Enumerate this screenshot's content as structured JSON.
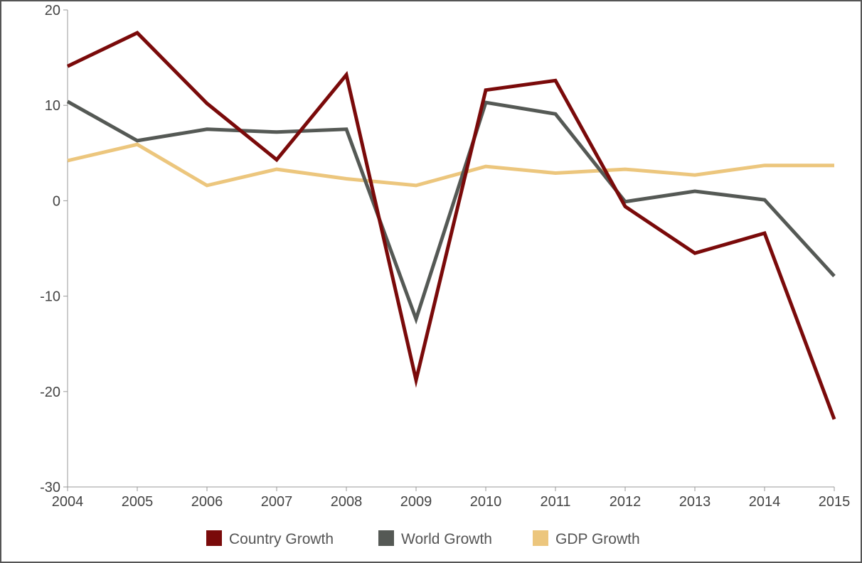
{
  "chart_data": {
    "type": "line",
    "title": "",
    "xlabel": "",
    "ylabel": "",
    "categories": [
      "2004",
      "2005",
      "2006",
      "2007",
      "2008",
      "2009",
      "2010",
      "2011",
      "2012",
      "2013",
      "2014",
      "2015"
    ],
    "y_ticks": [
      20,
      10,
      0,
      -10,
      -20,
      -30
    ],
    "ylim": [
      -30,
      20
    ],
    "grid": false,
    "legend_position": "bottom",
    "series": [
      {
        "name": "Country Growth",
        "color": "#7a0a0a",
        "values": [
          14.1,
          17.6,
          10.2,
          4.3,
          13.2,
          -18.8,
          11.6,
          12.6,
          -0.6,
          -5.5,
          -3.4,
          -22.9
        ]
      },
      {
        "name": "World Growth",
        "color": "#555955",
        "values": [
          10.4,
          6.3,
          7.5,
          7.2,
          7.5,
          -12.4,
          10.3,
          9.1,
          -0.1,
          1.0,
          0.1,
          -7.9
        ]
      },
      {
        "name": "GDP Growth",
        "color": "#ecc67d",
        "values": [
          4.2,
          5.9,
          1.6,
          3.3,
          2.3,
          1.6,
          3.6,
          2.9,
          3.3,
          2.7,
          3.7,
          3.7
        ]
      }
    ]
  }
}
